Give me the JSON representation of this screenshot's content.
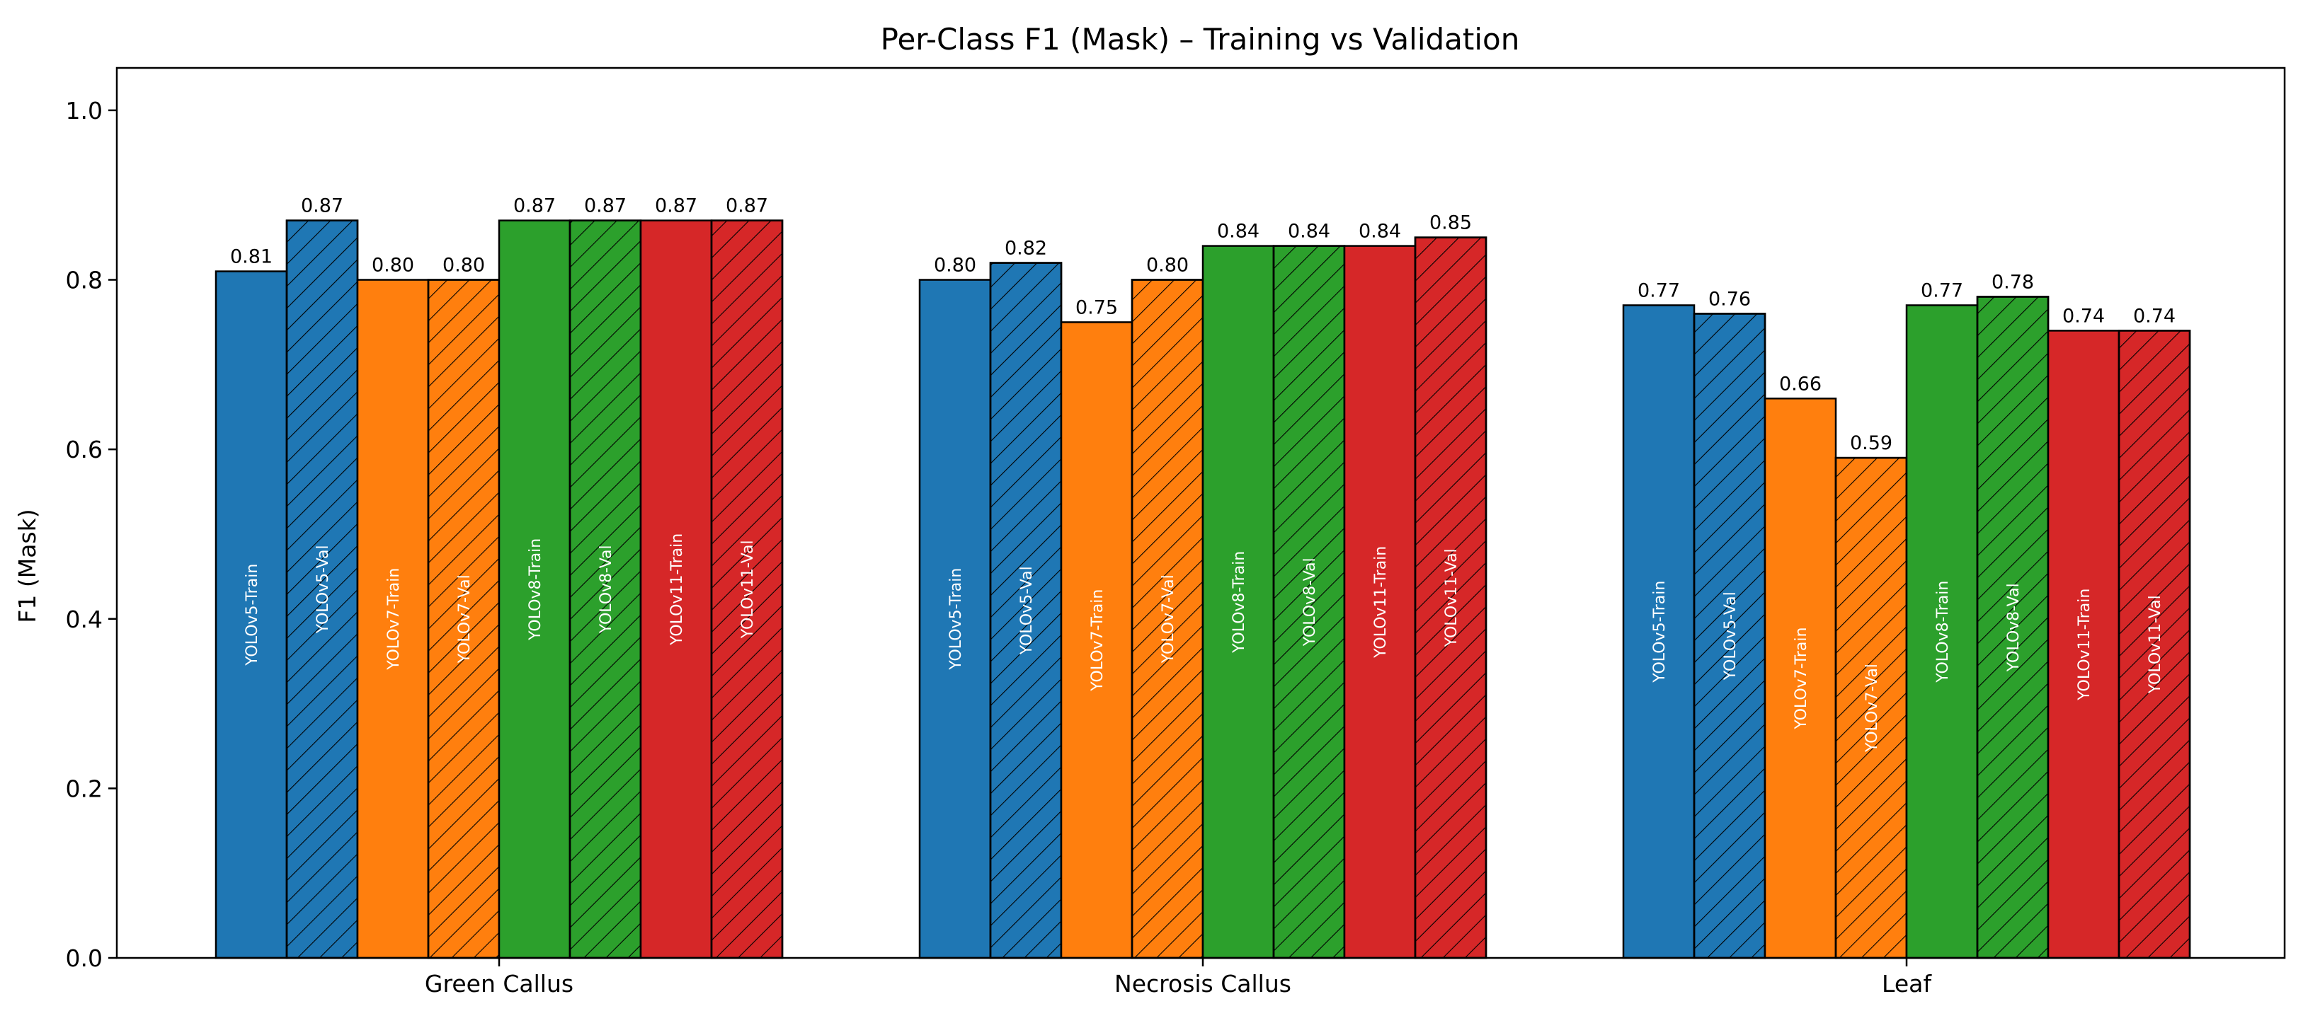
{
  "chart_data": {
    "type": "bar",
    "title": "Per-Class F1 (Mask) – Training vs Validation",
    "xlabel": "",
    "ylabel": "F1 (Mask)",
    "ylim": [
      0,
      1.05
    ],
    "yticks": [
      "0.0",
      "0.2",
      "0.4",
      "0.6",
      "0.8",
      "1.0"
    ],
    "categories": [
      "Green Callus",
      "Necrosis Callus",
      "Leaf"
    ],
    "grid": false,
    "legend": "none",
    "series": [
      {
        "name": "YOLOv5-Train",
        "color": "#1f77b4",
        "hatch": false,
        "values": [
          0.81,
          0.8,
          0.77
        ],
        "labels": [
          "0.81",
          "0.80",
          "0.77"
        ]
      },
      {
        "name": "YOLOv5-Val",
        "color": "#1f77b4",
        "hatch": true,
        "values": [
          0.87,
          0.82,
          0.76
        ],
        "labels": [
          "0.87",
          "0.82",
          "0.76"
        ]
      },
      {
        "name": "YOLOv7-Train",
        "color": "#ff7f0e",
        "hatch": false,
        "values": [
          0.8,
          0.75,
          0.66
        ],
        "labels": [
          "0.80",
          "0.75",
          "0.66"
        ]
      },
      {
        "name": "YOLOv7-Val",
        "color": "#ff7f0e",
        "hatch": true,
        "values": [
          0.8,
          0.8,
          0.59
        ],
        "labels": [
          "0.80",
          "0.80",
          "0.59"
        ]
      },
      {
        "name": "YOLOv8-Train",
        "color": "#2ca02c",
        "hatch": false,
        "values": [
          0.87,
          0.84,
          0.77
        ],
        "labels": [
          "0.87",
          "0.84",
          "0.77"
        ]
      },
      {
        "name": "YOLOv8-Val",
        "color": "#2ca02c",
        "hatch": true,
        "values": [
          0.87,
          0.84,
          0.78
        ],
        "labels": [
          "0.87",
          "0.84",
          "0.78"
        ]
      },
      {
        "name": "YOLOv11-Train",
        "color": "#d62728",
        "hatch": false,
        "values": [
          0.87,
          0.84,
          0.74
        ],
        "labels": [
          "0.87",
          "0.84",
          "0.74"
        ]
      },
      {
        "name": "YOLOv11-Val",
        "color": "#d62728",
        "hatch": true,
        "values": [
          0.87,
          0.85,
          0.74
        ],
        "labels": [
          "0.87",
          "0.85",
          "0.74"
        ]
      }
    ]
  }
}
